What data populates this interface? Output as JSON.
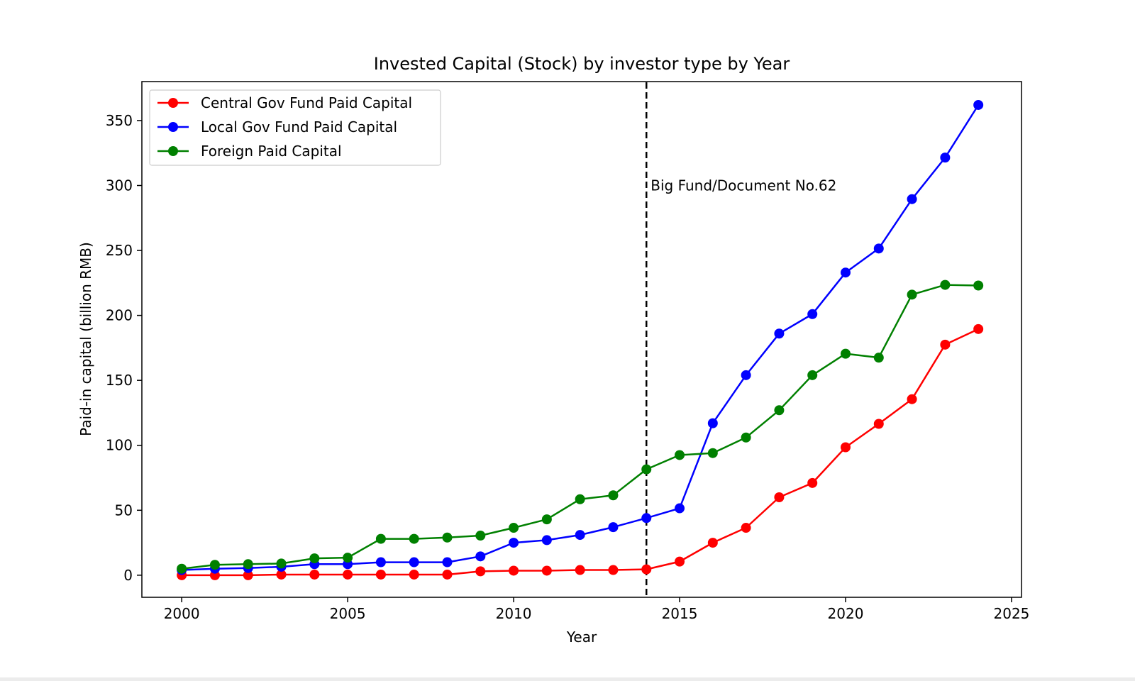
{
  "chart_data": {
    "type": "line",
    "title": "Invested Capital (Stock) by investor type by Year",
    "xlabel": "Year",
    "ylabel": "Paid-in capital (billion RMB)",
    "xlim": [
      1998.8,
      2025.3
    ],
    "ylim": [
      -17,
      380
    ],
    "xticks": [
      2000,
      2005,
      2010,
      2015,
      2020,
      2025
    ],
    "yticks": [
      0,
      50,
      100,
      150,
      200,
      250,
      300,
      350
    ],
    "x": [
      2000,
      2001,
      2002,
      2003,
      2004,
      2005,
      2006,
      2007,
      2008,
      2009,
      2010,
      2011,
      2012,
      2013,
      2014,
      2015,
      2016,
      2017,
      2018,
      2019,
      2020,
      2021,
      2022,
      2023,
      2024
    ],
    "series": [
      {
        "name": "Central Gov Fund Paid Capital",
        "color": "#ff0000",
        "values": [
          0,
          0,
          0,
          0.5,
          0.5,
          0.5,
          0.5,
          0.5,
          0.5,
          3,
          3.5,
          3.5,
          4,
          4,
          4.5,
          10.5,
          25,
          36.5,
          60,
          71,
          98.5,
          116.5,
          135.5,
          177.5,
          189.5
        ]
      },
      {
        "name": "Local Gov Fund Paid Capital",
        "color": "#0000ff",
        "values": [
          4,
          5,
          5.5,
          6.5,
          8.5,
          8.5,
          10,
          10,
          10,
          14.5,
          25,
          27,
          31,
          37,
          44,
          51.5,
          117,
          154,
          186,
          201,
          233,
          251.5,
          289.5,
          321.5,
          362
        ]
      },
      {
        "name": "Foreign Paid Capital",
        "color": "#008000",
        "values": [
          5,
          8,
          8.5,
          9,
          13,
          13.5,
          28,
          28,
          29,
          30.5,
          36.5,
          43,
          58.5,
          61.5,
          81.5,
          92.5,
          94,
          106,
          127,
          154,
          170.5,
          167.5,
          216,
          223.5,
          223
        ]
      }
    ],
    "annotations": [
      {
        "type": "vline",
        "x": 2014,
        "style": "dashed",
        "color": "#000000",
        "label": "Big Fund/Document No.62",
        "label_y": 300
      }
    ],
    "legend": "upper-left",
    "grid": false
  }
}
